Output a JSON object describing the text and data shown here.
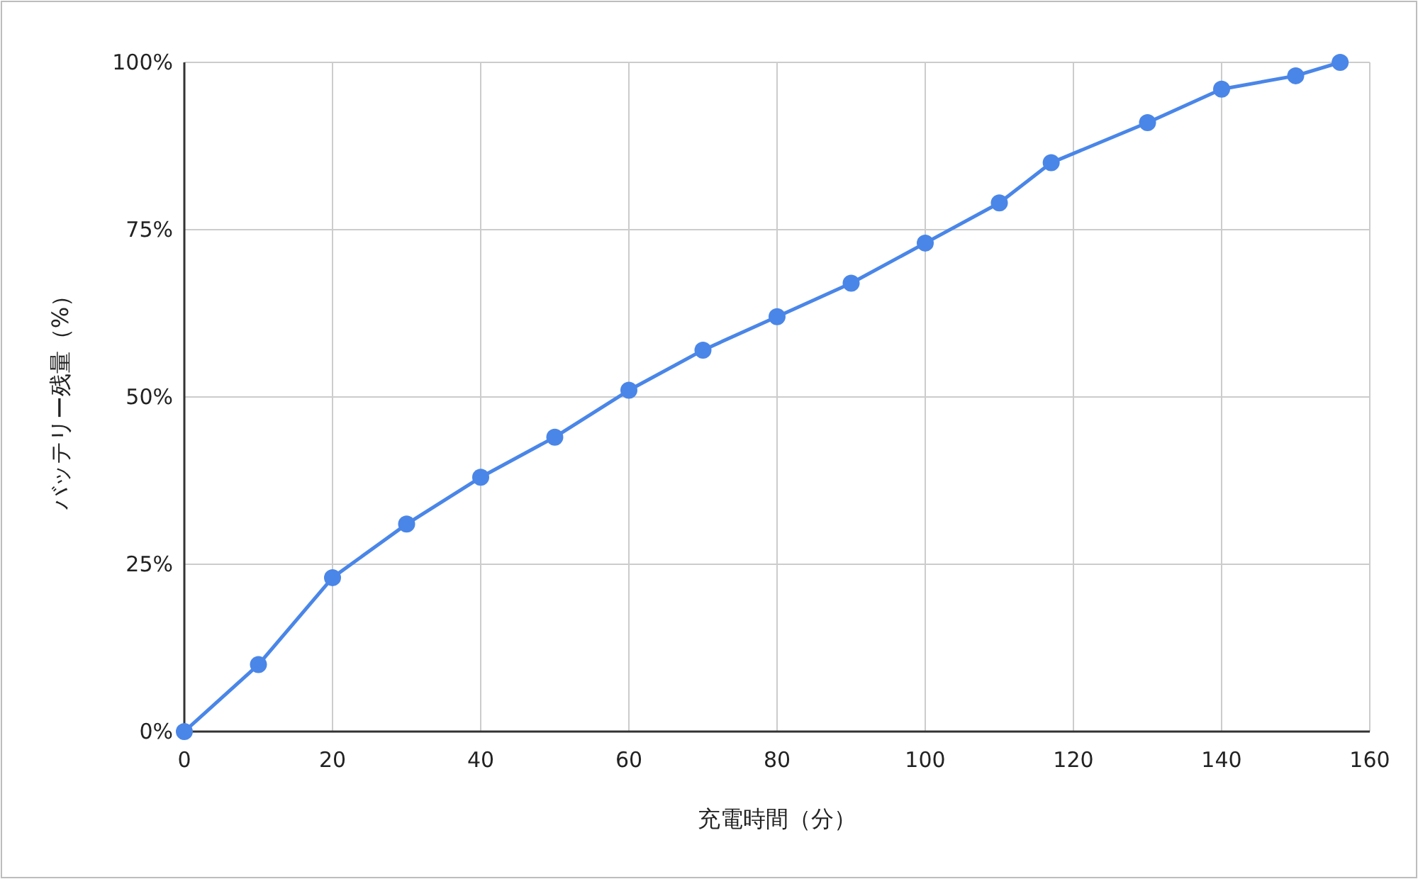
{
  "chart_data": {
    "type": "line",
    "xlabel": "充電時間（分）",
    "ylabel": "バッテリー残量（%）",
    "x": [
      0,
      10,
      20,
      30,
      40,
      50,
      60,
      70,
      80,
      90,
      100,
      110,
      117,
      130,
      140,
      150,
      156
    ],
    "series": [
      {
        "color": "#4a86e8",
        "values": [
          0,
          10,
          23,
          31,
          38,
          44,
          51,
          57,
          62,
          67,
          73,
          79,
          85,
          91,
          96,
          98,
          100
        ]
      }
    ],
    "xlim": [
      0,
      160
    ],
    "xticks": [
      0,
      20,
      40,
      60,
      80,
      100,
      120,
      140,
      160
    ],
    "ylim": [
      0,
      100
    ],
    "yticks": [
      {
        "value": 0,
        "label": "0%"
      },
      {
        "value": 25,
        "label": "25%"
      },
      {
        "value": 50,
        "label": "50%"
      },
      {
        "value": 75,
        "label": "75%"
      },
      {
        "value": 100,
        "label": "100%"
      }
    ],
    "grid": true,
    "marker": "circle",
    "line_style": "solid"
  }
}
